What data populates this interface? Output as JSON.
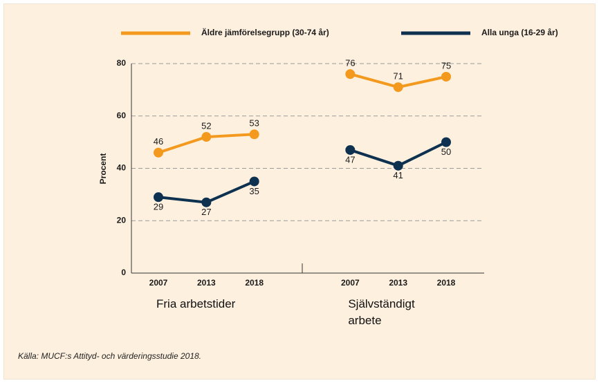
{
  "chart_data": {
    "type": "line",
    "categories": [
      "2007",
      "2013",
      "2018",
      null,
      "2007",
      "2013",
      "2018"
    ],
    "groups": [
      "Fria arbetstider",
      "Självständigt arbete"
    ],
    "series": [
      {
        "name": "Äldre jämförelsegrupp (30-74 år)",
        "color": "#f39a1e",
        "values": [
          46,
          52,
          53,
          null,
          76,
          71,
          75
        ],
        "label_position": "above"
      },
      {
        "name": "Alla unga (16-29 år)",
        "color": "#0e3150",
        "values": [
          29,
          27,
          35,
          null,
          47,
          41,
          50
        ],
        "label_position": "below"
      }
    ],
    "y_label": "Procent",
    "ylim": [
      0,
      80
    ],
    "yticks": [
      0,
      20,
      40,
      60,
      80
    ],
    "grid": true,
    "source": "Källa: MUCF:s Attityd- och värderingsstudie 2018."
  }
}
